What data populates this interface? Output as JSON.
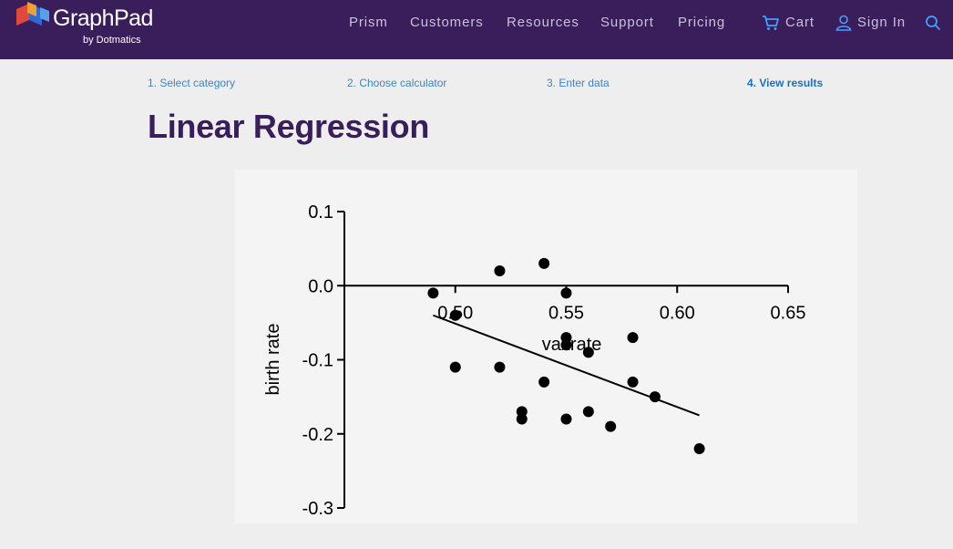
{
  "header": {
    "brand": "GraphPad",
    "by_line": "by Dotmatics",
    "nav": [
      "Prism",
      "Customers",
      "Resources",
      "Support",
      "Pricing"
    ],
    "cart_label": "Cart",
    "signin_label": "Sign In"
  },
  "steps": [
    "1. Select category",
    "2. Choose calculator",
    "3. Enter data",
    "4. View results"
  ],
  "active_step": 4,
  "page": {
    "title": "Linear Regression"
  },
  "colors": {
    "nav_bg": "#3a1e5c",
    "title": "#3a1e5c",
    "step_link": "#3a86c8"
  },
  "chart_data": {
    "type": "scatter",
    "title": "",
    "xlabel": "vaxrate",
    "ylabel": "birth rate",
    "xlim": [
      0.45,
      0.65
    ],
    "ylim": [
      -0.3,
      0.1
    ],
    "x_ticks": [
      "0.50",
      "0.55",
      "0.60",
      "0.65"
    ],
    "y_ticks": [
      "0.1",
      "0.0",
      "-0.1",
      "-0.2",
      "-0.3"
    ],
    "grid": false,
    "series": [
      {
        "points": [
          [
            0.49,
            -0.01
          ],
          [
            0.5,
            -0.04
          ],
          [
            0.5,
            -0.11
          ],
          [
            0.52,
            0.02
          ],
          [
            0.52,
            -0.11
          ],
          [
            0.53,
            -0.17
          ],
          [
            0.53,
            -0.18
          ],
          [
            0.54,
            0.03
          ],
          [
            0.54,
            -0.13
          ],
          [
            0.55,
            -0.01
          ],
          [
            0.55,
            -0.07
          ],
          [
            0.55,
            -0.08
          ],
          [
            0.55,
            -0.18
          ],
          [
            0.56,
            -0.09
          ],
          [
            0.56,
            -0.17
          ],
          [
            0.57,
            -0.19
          ],
          [
            0.58,
            -0.07
          ],
          [
            0.58,
            -0.13
          ],
          [
            0.59,
            -0.15
          ],
          [
            0.61,
            -0.22
          ]
        ]
      }
    ],
    "fit_line": {
      "x": [
        0.49,
        0.61
      ],
      "y": [
        -0.04,
        -0.175
      ]
    }
  }
}
